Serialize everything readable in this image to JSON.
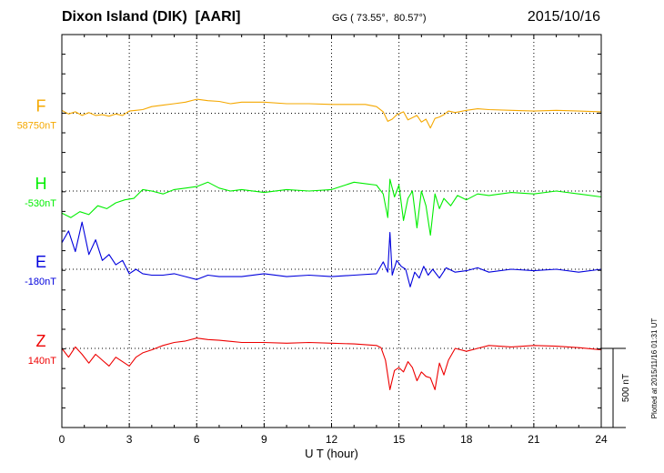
{
  "header": {
    "title": "Dixon Island (DIK)  [AARI]",
    "coords": "GG ( 73.55°,  80.57°)",
    "date": "2015/10/16"
  },
  "footer": {
    "plotted": "Plotted at 2015/11/16 01:31  UT"
  },
  "chart_data": {
    "type": "line",
    "title": "Dixon Island (DIK)  [AARI]",
    "xlabel": "U T (hour)",
    "ylabel": "",
    "xlim": [
      0,
      24
    ],
    "x_ticks": [
      0,
      3,
      6,
      9,
      12,
      15,
      18,
      21,
      24
    ],
    "x_tick_labels": [
      "0",
      "3",
      "6",
      "9",
      "12",
      "15",
      "18",
      "21",
      "24"
    ],
    "grid": true,
    "scale_bar": {
      "value": 500,
      "label": "500 nT"
    },
    "series": [
      {
        "name": "F",
        "baseline_label": "58750nT",
        "color": "#F5A800",
        "x": [
          0,
          0.3,
          0.6,
          0.9,
          1.2,
          1.5,
          1.8,
          2.1,
          2.4,
          2.7,
          3.0,
          3.3,
          3.6,
          4.0,
          4.5,
          5.0,
          5.5,
          6.0,
          6.5,
          7.0,
          7.5,
          8.0,
          9.0,
          10.0,
          11.0,
          12.0,
          13.0,
          13.5,
          14.0,
          14.3,
          14.5,
          14.7,
          14.9,
          15.2,
          15.4,
          15.6,
          15.8,
          16.0,
          16.2,
          16.4,
          16.6,
          16.8,
          17.0,
          17.2,
          17.5,
          18.0,
          18.5,
          19.0,
          20.0,
          21.0,
          22.0,
          23.0,
          24.0
        ],
        "values": [
          20,
          -5,
          10,
          -15,
          5,
          -15,
          -10,
          -20,
          -5,
          -15,
          15,
          20,
          25,
          45,
          55,
          65,
          75,
          95,
          85,
          80,
          65,
          75,
          75,
          65,
          65,
          60,
          60,
          60,
          45,
          10,
          -55,
          -40,
          -10,
          10,
          -45,
          -30,
          -15,
          -60,
          -40,
          -100,
          -35,
          -25,
          -10,
          15,
          5,
          20,
          30,
          25,
          20,
          15,
          20,
          15,
          10
        ]
      },
      {
        "name": "H",
        "baseline_label": "-530nT",
        "color": "#00EE00",
        "x": [
          0,
          0.4,
          0.8,
          1.2,
          1.6,
          2.0,
          2.4,
          2.8,
          3.2,
          3.6,
          4.0,
          4.5,
          5.0,
          5.5,
          6.0,
          6.5,
          7.0,
          7.5,
          8.0,
          9.0,
          10.0,
          11.0,
          12.0,
          13.0,
          13.5,
          14.0,
          14.3,
          14.5,
          14.6,
          14.8,
          15.0,
          15.2,
          15.4,
          15.6,
          15.8,
          16.0,
          16.2,
          16.4,
          16.6,
          16.8,
          17.0,
          17.3,
          17.6,
          18.0,
          18.5,
          19.0,
          20.0,
          21.0,
          22.0,
          23.0,
          24.0
        ],
        "values": [
          -150,
          -180,
          -140,
          -160,
          -100,
          -120,
          -80,
          -60,
          -50,
          10,
          0,
          -20,
          10,
          20,
          30,
          60,
          20,
          0,
          10,
          -10,
          10,
          0,
          10,
          60,
          50,
          40,
          -20,
          -180,
          80,
          -40,
          40,
          -200,
          -50,
          0,
          -250,
          0,
          -100,
          -300,
          -20,
          -120,
          -50,
          -100,
          -30,
          -60,
          -20,
          -30,
          -10,
          -20,
          0,
          -20,
          -40
        ]
      },
      {
        "name": "E",
        "baseline_label": "-180nT",
        "color": "#0000DD",
        "x": [
          0,
          0.3,
          0.6,
          0.9,
          1.2,
          1.5,
          1.8,
          2.1,
          2.4,
          2.7,
          3.0,
          3.3,
          3.6,
          4.0,
          4.5,
          5.0,
          5.5,
          6.0,
          6.5,
          7.0,
          8.0,
          9.0,
          10.0,
          11.0,
          12.0,
          13.0,
          14.0,
          14.3,
          14.5,
          14.6,
          14.7,
          14.9,
          15.1,
          15.3,
          15.5,
          15.7,
          15.9,
          16.1,
          16.3,
          16.5,
          16.8,
          17.1,
          17.5,
          18.0,
          18.5,
          19.0,
          20.0,
          21.0,
          22.0,
          23.0,
          24.0
        ],
        "values": [
          180,
          260,
          120,
          320,
          100,
          200,
          60,
          100,
          30,
          60,
          -30,
          0,
          -30,
          -40,
          -40,
          -30,
          -50,
          -70,
          -40,
          -50,
          -50,
          -30,
          -50,
          -40,
          -50,
          -40,
          -30,
          50,
          -20,
          250,
          -40,
          60,
          20,
          0,
          -120,
          -20,
          -60,
          20,
          -40,
          0,
          -60,
          10,
          -20,
          -10,
          10,
          -20,
          0,
          -10,
          0,
          -20,
          0
        ]
      },
      {
        "name": "Z",
        "baseline_label": "140nT",
        "color": "#EE0000",
        "x": [
          0,
          0.3,
          0.6,
          0.9,
          1.2,
          1.5,
          1.8,
          2.1,
          2.4,
          2.7,
          3.0,
          3.3,
          3.6,
          4.0,
          4.5,
          5.0,
          5.5,
          6.0,
          6.5,
          7.0,
          8.0,
          9.0,
          10.0,
          11.0,
          12.0,
          13.0,
          14.0,
          14.2,
          14.4,
          14.6,
          14.8,
          15.0,
          15.2,
          15.4,
          15.6,
          15.8,
          16.0,
          16.2,
          16.4,
          16.6,
          16.8,
          17.0,
          17.2,
          17.5,
          18.0,
          18.5,
          19.0,
          20.0,
          21.0,
          22.0,
          23.0,
          24.0
        ],
        "values": [
          0,
          -60,
          10,
          -40,
          -100,
          -40,
          -80,
          -120,
          -60,
          -90,
          -120,
          -60,
          -30,
          -10,
          20,
          40,
          50,
          70,
          60,
          55,
          40,
          40,
          35,
          40,
          35,
          30,
          20,
          5,
          -80,
          -280,
          -150,
          -130,
          -160,
          -90,
          -130,
          -220,
          -160,
          -190,
          -200,
          -280,
          -100,
          -180,
          -80,
          0,
          -20,
          0,
          20,
          10,
          20,
          15,
          5,
          -10
        ]
      }
    ]
  }
}
